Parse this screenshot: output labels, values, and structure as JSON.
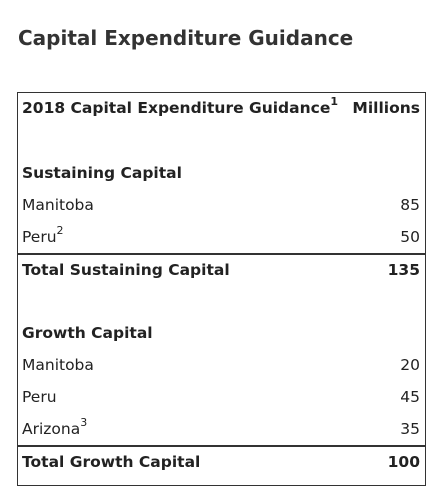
{
  "title": "Capital Expenditure Guidance",
  "table": {
    "header": {
      "label": "2018 Capital Expenditure Guidance",
      "footnote": "1",
      "unit": "Millions"
    },
    "sections": [
      {
        "heading": "Sustaining Capital",
        "rows": [
          {
            "label": "Manitoba",
            "value": 85
          },
          {
            "label": "Peru",
            "footnote": "2",
            "value": 50
          }
        ],
        "total": {
          "label": "Total Sustaining Capital",
          "value": 135
        }
      },
      {
        "heading": "Growth Capital",
        "rows": [
          {
            "label": "Manitoba",
            "value": 20
          },
          {
            "label": "Peru",
            "value": 45
          },
          {
            "label": "Arizona",
            "footnote": "3",
            "value": 35
          }
        ],
        "total": {
          "label": "Total Growth Capital",
          "value": 100
        }
      }
    ]
  }
}
